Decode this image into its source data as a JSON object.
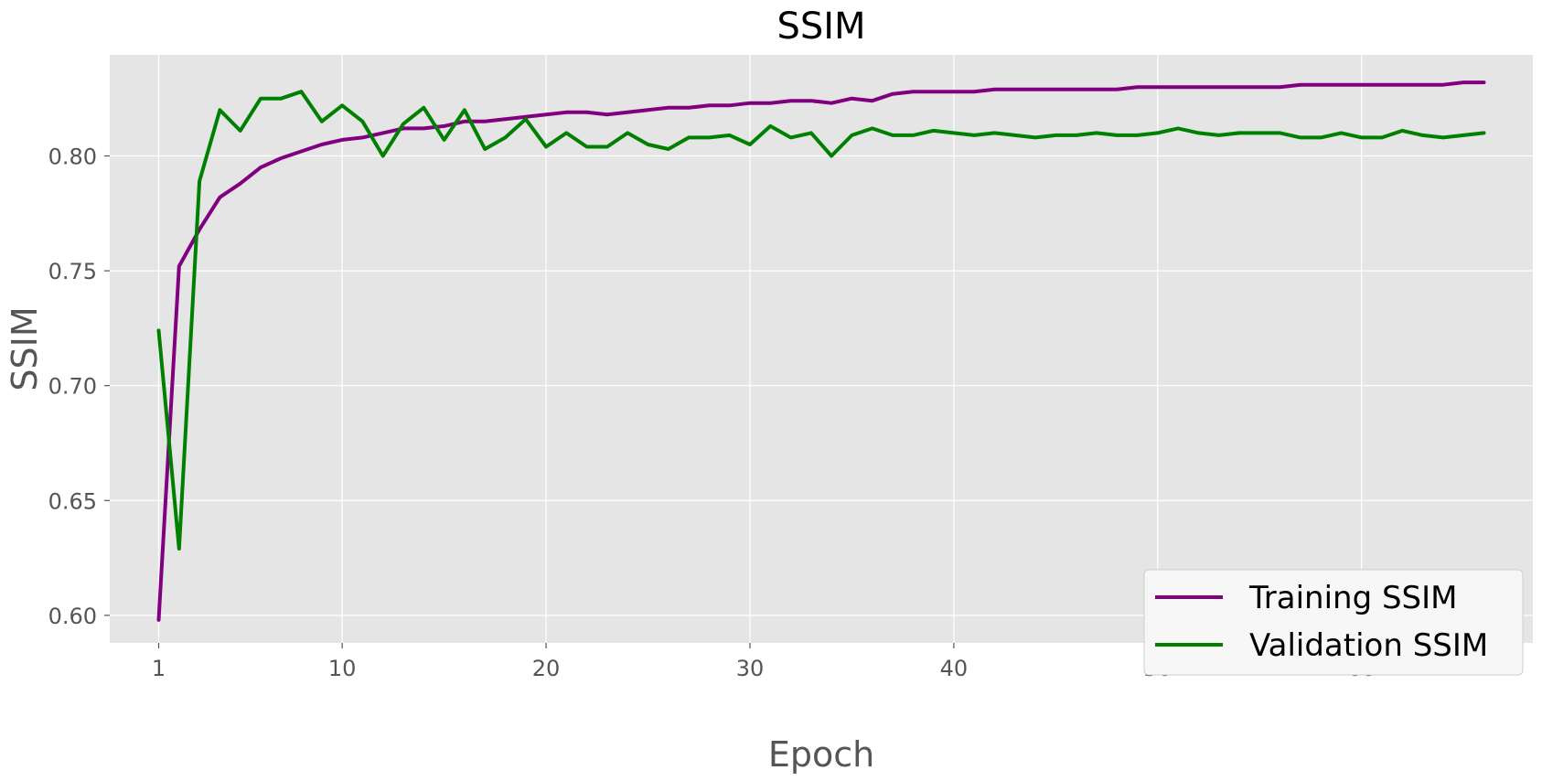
{
  "chart_data": {
    "type": "line",
    "title": "SSIM",
    "xlabel": "Epoch",
    "ylabel": "SSIM",
    "xlim": [
      -1.4,
      68.4
    ],
    "ylim": [
      0.588,
      0.844
    ],
    "xticks": [
      1,
      10,
      20,
      30,
      40,
      50,
      60
    ],
    "yticks": [
      0.6,
      0.65,
      0.7,
      0.75,
      0.8
    ],
    "ytick_labels": [
      "0.60",
      "0.65",
      "0.70",
      "0.75",
      "0.80"
    ],
    "grid": true,
    "legend_position": "bottom-right",
    "x": [
      1,
      2,
      3,
      4,
      5,
      6,
      7,
      8,
      9,
      10,
      11,
      12,
      13,
      14,
      15,
      16,
      17,
      18,
      19,
      20,
      21,
      22,
      23,
      24,
      25,
      26,
      27,
      28,
      29,
      30,
      31,
      32,
      33,
      34,
      35,
      36,
      37,
      38,
      39,
      40,
      41,
      42,
      43,
      44,
      45,
      46,
      47,
      48,
      49,
      50,
      51,
      52,
      53,
      54,
      55,
      56,
      57,
      58,
      59,
      60,
      61,
      62,
      63,
      64,
      65,
      66
    ],
    "series": [
      {
        "name": "Training SSIM",
        "color": "#800080",
        "values": [
          0.598,
          0.752,
          0.768,
          0.782,
          0.788,
          0.795,
          0.799,
          0.802,
          0.805,
          0.807,
          0.808,
          0.81,
          0.812,
          0.812,
          0.813,
          0.815,
          0.815,
          0.816,
          0.817,
          0.818,
          0.819,
          0.819,
          0.818,
          0.819,
          0.82,
          0.821,
          0.821,
          0.822,
          0.822,
          0.823,
          0.823,
          0.824,
          0.824,
          0.823,
          0.825,
          0.824,
          0.827,
          0.828,
          0.828,
          0.828,
          0.828,
          0.829,
          0.829,
          0.829,
          0.829,
          0.829,
          0.829,
          0.829,
          0.83,
          0.83,
          0.83,
          0.83,
          0.83,
          0.83,
          0.83,
          0.83,
          0.831,
          0.831,
          0.831,
          0.831,
          0.831,
          0.831,
          0.831,
          0.831,
          0.832,
          0.832
        ]
      },
      {
        "name": "Validation SSIM",
        "color": "#008000",
        "values": [
          0.724,
          0.629,
          0.789,
          0.82,
          0.811,
          0.825,
          0.825,
          0.828,
          0.815,
          0.822,
          0.815,
          0.8,
          0.814,
          0.821,
          0.807,
          0.82,
          0.803,
          0.808,
          0.816,
          0.804,
          0.81,
          0.804,
          0.804,
          0.81,
          0.805,
          0.803,
          0.808,
          0.808,
          0.809,
          0.805,
          0.813,
          0.808,
          0.81,
          0.8,
          0.809,
          0.812,
          0.809,
          0.809,
          0.811,
          0.81,
          0.809,
          0.81,
          0.809,
          0.808,
          0.809,
          0.809,
          0.81,
          0.809,
          0.809,
          0.81,
          0.812,
          0.81,
          0.809,
          0.81,
          0.81,
          0.81,
          0.808,
          0.808,
          0.81,
          0.808,
          0.808,
          0.811,
          0.809,
          0.808,
          0.809,
          0.81
        ]
      }
    ]
  }
}
